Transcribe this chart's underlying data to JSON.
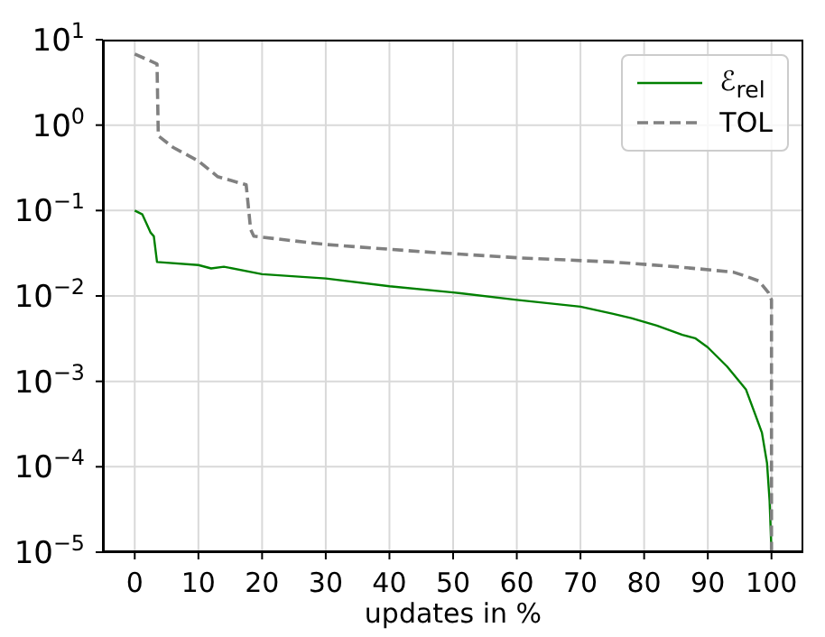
{
  "chart_data": {
    "type": "line",
    "xlabel": "updates in %",
    "xlim": [
      -5,
      105
    ],
    "xticks": [
      0,
      10,
      20,
      30,
      40,
      50,
      60,
      70,
      80,
      90,
      100
    ],
    "ylim": [
      1e-05,
      10
    ],
    "log": true,
    "yticks": [
      {
        "value": 1e-05,
        "label": "10$^{−5}$"
      },
      {
        "value": 0.0001,
        "label": "10$^{−4}$"
      },
      {
        "value": 0.001,
        "label": "10$^{−3}$"
      },
      {
        "value": 0.01,
        "label": "10$^{−2}$"
      },
      {
        "value": 0.1,
        "label": "10$^{−1}$"
      },
      {
        "value": 1,
        "label": "10$^{0}$"
      },
      {
        "value": 10,
        "label": "10$^{1}$"
      }
    ],
    "grid": true,
    "legend": "top right",
    "series": [
      {
        "name": "ℰ$_{rel}$",
        "color": "#008000",
        "line_style": "solid",
        "x": [
          0,
          1.2,
          2.5,
          3,
          3.5,
          10,
          12,
          14,
          20,
          30,
          40,
          50,
          60,
          70,
          75,
          78,
          82,
          86,
          88,
          90,
          93,
          96,
          97.5,
          98.5,
          99.3,
          99.7,
          100
        ],
        "values": [
          0.1,
          0.09,
          0.055,
          0.05,
          0.025,
          0.023,
          0.021,
          0.022,
          0.018,
          0.016,
          0.013,
          0.011,
          0.009,
          0.0075,
          0.0062,
          0.0055,
          0.0045,
          0.0035,
          0.0032,
          0.0025,
          0.0015,
          0.0008,
          0.0004,
          0.00025,
          0.00011,
          4e-05,
          1e-05
        ]
      },
      {
        "name": "TOL",
        "color": "#808080",
        "line_style": "dashed",
        "x": [
          0,
          3.5,
          3.7,
          6,
          10,
          13,
          17.5,
          18.2,
          18.7,
          30,
          45,
          60,
          75,
          85,
          94,
          96,
          98,
          99.5,
          100,
          100
        ],
        "values": [
          6.8,
          5.2,
          0.75,
          0.55,
          0.38,
          0.25,
          0.2,
          0.06,
          0.05,
          0.04,
          0.033,
          0.028,
          0.025,
          0.022,
          0.019,
          0.017,
          0.015,
          0.011,
          0.009,
          1e-05
        ]
      }
    ]
  }
}
